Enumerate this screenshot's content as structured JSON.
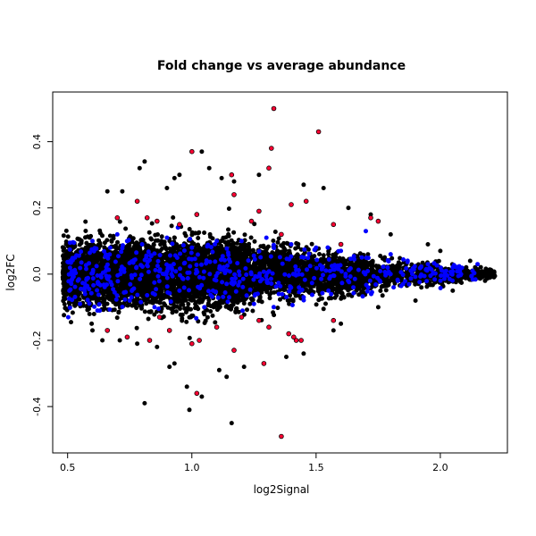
{
  "chart_data": {
    "type": "scatter",
    "title": "Fold change vs average abundance",
    "xlabel": "log2Signal",
    "ylabel": "log2FC",
    "xlim": [
      0.44,
      2.27
    ],
    "ylim": [
      -0.54,
      0.55
    ],
    "x_ticks": [
      0.5,
      1.0,
      1.5,
      2.0
    ],
    "x_tick_labels": [
      "0.5",
      "1.0",
      "1.5",
      "2.0"
    ],
    "y_ticks": [
      -0.4,
      -0.2,
      0.0,
      0.2,
      0.4
    ],
    "y_tick_labels": [
      "-0.4",
      "-0.2",
      "0.0",
      "0.2",
      "0.4"
    ],
    "grid": false,
    "legend": "none",
    "colors": {
      "background_points": "#000000",
      "highlight_blue": "#0000ff",
      "highlight_red": "#ff0033"
    },
    "series": [
      {
        "color": "#000000",
        "description_points": "dense cloud of points (approx. 20000) spanning x 0.48 to 2.22; spread approx +/-0.12 at x=0.5-1.1 narrowing to +/-0.01 at x=2.2",
        "points": [
          [
            0.81,
            0.34
          ],
          [
            0.79,
            0.32
          ],
          [
            1.04,
            0.37
          ],
          [
            0.93,
            0.29
          ],
          [
            0.95,
            0.3
          ],
          [
            1.12,
            0.29
          ],
          [
            1.27,
            0.3
          ],
          [
            0.9,
            0.26
          ],
          [
            1.17,
            0.28
          ],
          [
            1.45,
            0.27
          ],
          [
            1.53,
            0.26
          ],
          [
            0.66,
            0.25
          ],
          [
            0.72,
            0.25
          ],
          [
            1.07,
            0.32
          ],
          [
            0.81,
            -0.39
          ],
          [
            0.99,
            -0.41
          ],
          [
            1.04,
            -0.37
          ],
          [
            0.98,
            -0.34
          ],
          [
            1.16,
            -0.45
          ],
          [
            0.93,
            -0.27
          ],
          [
            1.11,
            -0.29
          ],
          [
            1.14,
            -0.31
          ],
          [
            0.91,
            -0.28
          ],
          [
            1.21,
            -0.28
          ],
          [
            1.38,
            -0.25
          ],
          [
            1.45,
            -0.24
          ],
          [
            0.71,
            -0.2
          ],
          [
            0.78,
            -0.21
          ],
          [
            0.86,
            -0.22
          ],
          [
            0.64,
            -0.2
          ],
          [
            0.6,
            -0.17
          ],
          [
            1.57,
            -0.17
          ],
          [
            1.63,
            0.2
          ],
          [
            1.72,
            0.18
          ],
          [
            1.6,
            -0.15
          ],
          [
            1.8,
            0.12
          ],
          [
            1.75,
            -0.1
          ],
          [
            1.95,
            0.09
          ],
          [
            1.9,
            -0.08
          ],
          [
            2.0,
            0.07
          ],
          [
            2.05,
            -0.05
          ],
          [
            2.12,
            0.04
          ],
          [
            2.18,
            -0.02
          ],
          [
            2.21,
            0.0
          ]
        ]
      },
      {
        "color": "#0000ff",
        "description_points": "approx. 500 blue highlighted points scattered inside the core of the cloud, |log2FC| mostly < 0.13",
        "points": [
          [
            0.53,
            0.05
          ],
          [
            0.55,
            -0.09
          ],
          [
            0.6,
            0.1
          ],
          [
            0.62,
            -0.11
          ],
          [
            0.7,
            0.12
          ],
          [
            0.75,
            -0.08
          ],
          [
            0.8,
            0.09
          ],
          [
            0.85,
            -0.1
          ],
          [
            0.9,
            0.11
          ],
          [
            0.95,
            -0.05
          ],
          [
            1.0,
            0.08
          ],
          [
            1.05,
            -0.1
          ],
          [
            1.1,
            0.1
          ],
          [
            1.15,
            -0.07
          ],
          [
            1.2,
            0.1
          ],
          [
            1.25,
            -0.09
          ],
          [
            1.3,
            0.11
          ],
          [
            1.35,
            -0.06
          ],
          [
            1.4,
            0.09
          ],
          [
            1.45,
            -0.07
          ],
          [
            1.5,
            0.08
          ],
          [
            1.55,
            -0.05
          ],
          [
            1.6,
            0.07
          ],
          [
            1.65,
            -0.04
          ],
          [
            1.7,
            0.13
          ],
          [
            1.8,
            0.06
          ],
          [
            1.85,
            -0.03
          ],
          [
            1.95,
            0.03
          ],
          [
            2.05,
            0.02
          ],
          [
            2.15,
            0.03
          ]
        ]
      },
      {
        "color": "#ff0033",
        "points": [
          [
            1.33,
            0.5
          ],
          [
            1.51,
            0.43
          ],
          [
            1.32,
            0.38
          ],
          [
            1.0,
            0.37
          ],
          [
            1.31,
            0.32
          ],
          [
            1.16,
            0.3
          ],
          [
            1.17,
            0.24
          ],
          [
            1.4,
            0.21
          ],
          [
            1.46,
            0.22
          ],
          [
            1.27,
            0.19
          ],
          [
            1.24,
            0.16
          ],
          [
            0.78,
            0.22
          ],
          [
            0.82,
            0.17
          ],
          [
            0.86,
            0.16
          ],
          [
            0.7,
            0.17
          ],
          [
            1.72,
            0.17
          ],
          [
            1.75,
            0.16
          ],
          [
            1.57,
            0.15
          ],
          [
            1.36,
            0.12
          ],
          [
            1.02,
            0.18
          ],
          [
            0.95,
            0.15
          ],
          [
            1.6,
            0.09
          ],
          [
            1.36,
            -0.49
          ],
          [
            1.02,
            -0.36
          ],
          [
            1.29,
            -0.27
          ],
          [
            1.17,
            -0.23
          ],
          [
            1.0,
            -0.21
          ],
          [
            1.03,
            -0.2
          ],
          [
            1.42,
            -0.2
          ],
          [
            1.44,
            -0.2
          ],
          [
            1.39,
            -0.18
          ],
          [
            1.41,
            -0.19
          ],
          [
            0.74,
            -0.19
          ],
          [
            0.83,
            -0.2
          ],
          [
            0.91,
            -0.17
          ],
          [
            1.27,
            -0.14
          ],
          [
            1.2,
            -0.13
          ],
          [
            1.57,
            -0.14
          ],
          [
            0.66,
            -0.17
          ],
          [
            0.87,
            -0.13
          ],
          [
            1.1,
            -0.16
          ],
          [
            1.31,
            -0.16
          ]
        ]
      }
    ]
  }
}
